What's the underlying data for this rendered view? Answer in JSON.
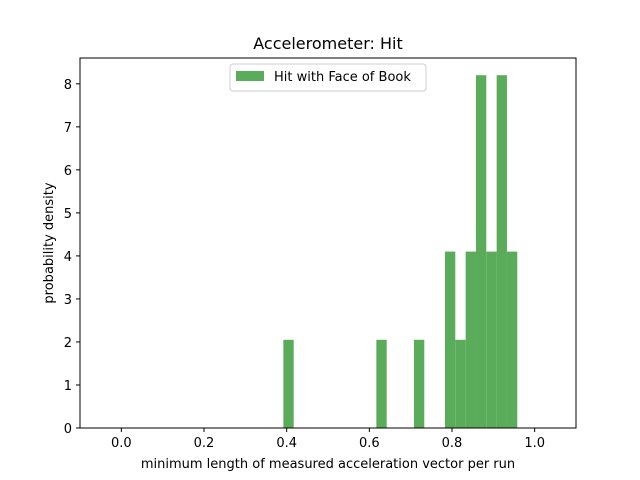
{
  "chart_data": {
    "type": "bar",
    "title": "Accelerometer: Hit",
    "xlabel": "minimum length of measured acceleration vector per run",
    "ylabel": "probability density",
    "xlim": [
      -0.1,
      1.1
    ],
    "ylim": [
      0,
      8.6
    ],
    "xticks": [
      0.0,
      0.2,
      0.4,
      0.6,
      0.8,
      1.0
    ],
    "xtick_labels": [
      "0.0",
      "0.2",
      "0.4",
      "0.6",
      "0.8",
      "1.0"
    ],
    "yticks": [
      0,
      1,
      2,
      3,
      4,
      5,
      6,
      7,
      8
    ],
    "ytick_labels": [
      "0",
      "1",
      "2",
      "3",
      "4",
      "5",
      "6",
      "7",
      "8"
    ],
    "grid": false,
    "legend_position": "top-center",
    "series": [
      {
        "name": "Hit with Face of Book",
        "color": "#5aac5a",
        "bins": [
          {
            "x0": 0.392,
            "x1": 0.417,
            "density": 2.05
          },
          {
            "x0": 0.617,
            "x1": 0.642,
            "density": 2.05
          },
          {
            "x0": 0.708,
            "x1": 0.733,
            "density": 2.05
          },
          {
            "x0": 0.783,
            "x1": 0.808,
            "density": 4.1
          },
          {
            "x0": 0.808,
            "x1": 0.833,
            "density": 2.05
          },
          {
            "x0": 0.833,
            "x1": 0.858,
            "density": 4.1
          },
          {
            "x0": 0.858,
            "x1": 0.883,
            "density": 8.2
          },
          {
            "x0": 0.883,
            "x1": 0.908,
            "density": 4.1
          },
          {
            "x0": 0.908,
            "x1": 0.933,
            "density": 8.2
          },
          {
            "x0": 0.933,
            "x1": 0.958,
            "density": 4.1
          }
        ]
      }
    ]
  }
}
